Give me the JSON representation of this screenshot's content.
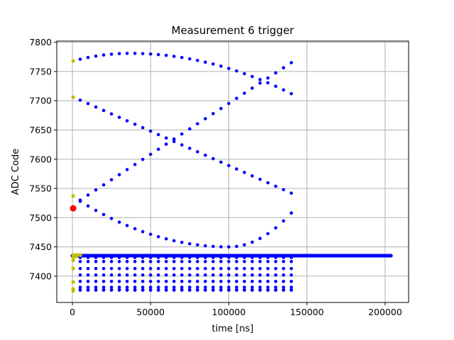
{
  "chart_data": {
    "type": "scatter",
    "title": "Measurement 6 trigger",
    "xlabel": "time [ns]",
    "ylabel": "ADC Code",
    "xlim": [
      -10000,
      215000
    ],
    "ylim": [
      7355,
      7802
    ],
    "xticks": [
      0,
      50000,
      100000,
      150000,
      200000
    ],
    "xtick_labels": [
      "0",
      "50000",
      "100000",
      "150000",
      "200000"
    ],
    "yticks": [
      7400,
      7450,
      7500,
      7550,
      7600,
      7650,
      7700,
      7750,
      7800
    ],
    "ytick_labels": [
      "7400",
      "7450",
      "7500",
      "7550",
      "7600",
      "7650",
      "7700",
      "7750",
      "7800"
    ],
    "grid": true,
    "colors": {
      "main": "#0000ff",
      "start": "#bfbf00",
      "trigger": "#ff0000"
    },
    "curves": [
      {
        "x": [
          5000,
          140000
        ],
        "ystart": 7771,
        "peak_x": 37000,
        "peak_y": 7781,
        "yend": 7712
      },
      {
        "x": [
          5000,
          140000
        ],
        "ystart": 7701,
        "peak_x": null,
        "peak_y": null,
        "yend": 7542
      },
      {
        "x": [
          5000,
          140000
        ],
        "ystart": 7530,
        "peak_x": null,
        "peak_y": null,
        "yend": 7765
      },
      {
        "x": [
          5000,
          140000
        ],
        "ystart": 7528,
        "peak_x": 100000,
        "peak_y": 7450,
        "yend": 7508
      }
    ],
    "baseline_band": {
      "x": [
        0,
        204000
      ],
      "y": 7435
    },
    "lower_bands": [
      {
        "x": [
          5000,
          140000
        ],
        "y": 7432
      },
      {
        "x": [
          5000,
          140000
        ],
        "y": 7425
      },
      {
        "x": [
          5000,
          140000
        ],
        "y": 7413
      },
      {
        "x": [
          5000,
          140000
        ],
        "y": 7402
      },
      {
        "x": [
          5000,
          140000
        ],
        "y": 7391
      },
      {
        "x": [
          5000,
          140000
        ],
        "y": 7381
      },
      {
        "x": [
          5000,
          140000
        ],
        "y": 7377
      },
      {
        "x": [
          5000,
          140000
        ],
        "y": 7376
      }
    ],
    "start_points": {
      "x": 500,
      "y": [
        7768,
        7706,
        7537,
        7436,
        7432,
        7427,
        7413,
        7390,
        7378,
        7375
      ],
      "extra": [
        [
          3000,
          7436
        ],
        [
          5000,
          7436
        ],
        [
          2000,
          7434
        ]
      ]
    },
    "trigger_point": {
      "x": 500,
      "y": 7516
    }
  }
}
